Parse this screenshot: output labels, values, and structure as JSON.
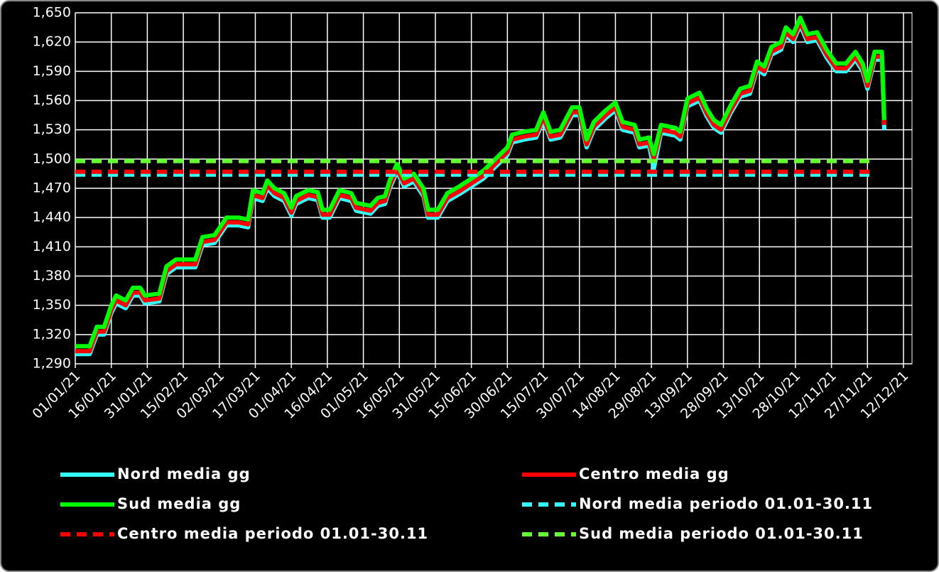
{
  "chart_data": {
    "type": "line",
    "xlim": [
      "2021-01-01",
      "2021-12-12"
    ],
    "xticks": [
      {
        "value": "2021-01-01",
        "label": "01/01/21"
      },
      {
        "value": "2021-01-16",
        "label": "16/01/21"
      },
      {
        "value": "2021-01-31",
        "label": "31/01/21"
      },
      {
        "value": "2021-02-15",
        "label": "15/02/21"
      },
      {
        "value": "2021-03-02",
        "label": "02/03/21"
      },
      {
        "value": "2021-03-17",
        "label": "17/03/21"
      },
      {
        "value": "2021-04-01",
        "label": "01/04/21"
      },
      {
        "value": "2021-04-16",
        "label": "16/04/21"
      },
      {
        "value": "2021-05-01",
        "label": "01/05/21"
      },
      {
        "value": "2021-05-16",
        "label": "16/05/21"
      },
      {
        "value": "2021-05-31",
        "label": "31/05/21"
      },
      {
        "value": "2021-06-15",
        "label": "15/06/21"
      },
      {
        "value": "2021-06-30",
        "label": "30/06/21"
      },
      {
        "value": "2021-07-15",
        "label": "15/07/21"
      },
      {
        "value": "2021-07-30",
        "label": "30/07/21"
      },
      {
        "value": "2021-08-14",
        "label": "14/08/21"
      },
      {
        "value": "2021-08-29",
        "label": "29/08/21"
      },
      {
        "value": "2021-09-13",
        "label": "13/09/21"
      },
      {
        "value": "2021-09-28",
        "label": "28/09/21"
      },
      {
        "value": "2021-10-13",
        "label": "13/10/21"
      },
      {
        "value": "2021-10-28",
        "label": "28/10/21"
      },
      {
        "value": "2021-11-12",
        "label": "12/11/21"
      },
      {
        "value": "2021-11-27",
        "label": "27/11/21"
      },
      {
        "value": "2021-12-12",
        "label": "12/12/21"
      }
    ],
    "ylim": [
      1290,
      1650
    ],
    "yticks": [
      {
        "value": 1290,
        "label": "1,290"
      },
      {
        "value": 1320,
        "label": "1,320"
      },
      {
        "value": 1350,
        "label": "1,350"
      },
      {
        "value": 1380,
        "label": "1,380"
      },
      {
        "value": 1410,
        "label": "1,410"
      },
      {
        "value": 1440,
        "label": "1,440"
      },
      {
        "value": 1470,
        "label": "1,470"
      },
      {
        "value": 1500,
        "label": "1,500"
      },
      {
        "value": 1530,
        "label": "1,530"
      },
      {
        "value": 1560,
        "label": "1,560"
      },
      {
        "value": 1590,
        "label": "1,590"
      },
      {
        "value": 1620,
        "label": "1,620"
      },
      {
        "value": 1650,
        "label": "1,650"
      }
    ],
    "grid": true,
    "x": [
      "2021-01-01",
      "2021-01-07",
      "2021-01-08",
      "2021-01-10",
      "2021-01-13",
      "2021-01-16",
      "2021-01-18",
      "2021-01-22",
      "2021-01-25",
      "2021-01-28",
      "2021-01-30",
      "2021-02-05",
      "2021-02-08",
      "2021-02-12",
      "2021-02-20",
      "2021-02-23",
      "2021-02-28",
      "2021-03-05",
      "2021-03-10",
      "2021-03-14",
      "2021-03-16",
      "2021-03-20",
      "2021-03-22",
      "2021-03-25",
      "2021-03-29",
      "2021-04-01",
      "2021-04-03",
      "2021-04-08",
      "2021-04-12",
      "2021-04-14",
      "2021-04-17",
      "2021-04-21",
      "2021-04-26",
      "2021-04-28",
      "2021-05-04",
      "2021-05-07",
      "2021-05-10",
      "2021-05-12",
      "2021-05-15",
      "2021-05-18",
      "2021-05-22",
      "2021-05-26",
      "2021-05-28",
      "2021-06-01",
      "2021-06-05",
      "2021-06-10",
      "2021-06-15",
      "2021-06-20",
      "2021-06-25",
      "2021-06-30",
      "2021-07-02",
      "2021-07-07",
      "2021-07-12",
      "2021-07-15",
      "2021-07-18",
      "2021-07-22",
      "2021-07-27",
      "2021-07-30",
      "2021-08-02",
      "2021-08-05",
      "2021-08-10",
      "2021-08-14",
      "2021-08-17",
      "2021-08-22",
      "2021-08-24",
      "2021-08-28",
      "2021-08-30",
      "2021-09-02",
      "2021-09-08",
      "2021-09-10",
      "2021-09-13",
      "2021-09-18",
      "2021-09-21",
      "2021-09-24",
      "2021-09-27",
      "2021-10-01",
      "2021-10-05",
      "2021-10-09",
      "2021-10-12",
      "2021-10-15",
      "2021-10-18",
      "2021-10-22",
      "2021-10-24",
      "2021-10-27",
      "2021-10-30",
      "2021-11-02",
      "2021-11-06",
      "2021-11-10",
      "2021-11-14",
      "2021-11-18",
      "2021-11-22",
      "2021-11-25",
      "2021-11-27",
      "2021-11-30",
      "2021-12-03",
      "2021-12-04"
    ],
    "series": [
      {
        "name": "Nord media gg",
        "color": "#33ffff",
        "style": "solid",
        "values": [
          1300,
          1300,
          1307,
          1320,
          1320,
          1342,
          1352,
          1347,
          1360,
          1360,
          1352,
          1354,
          1382,
          1389,
          1389,
          1412,
          1414,
          1432,
          1432,
          1430,
          1460,
          1457,
          1470,
          1462,
          1457,
          1442,
          1454,
          1460,
          1458,
          1440,
          1440,
          1460,
          1457,
          1447,
          1444,
          1452,
          1454,
          1470,
          1487,
          1472,
          1477,
          1462,
          1440,
          1440,
          1457,
          1464,
          1472,
          1480,
          1492,
          1504,
          1517,
          1520,
          1522,
          1540,
          1520,
          1522,
          1545,
          1545,
          1512,
          1530,
          1542,
          1550,
          1530,
          1527,
          1512,
          1514,
          1490,
          1527,
          1524,
          1520,
          1554,
          1560,
          1544,
          1532,
          1527,
          1547,
          1564,
          1567,
          1592,
          1587,
          1607,
          1612,
          1627,
          1620,
          1637,
          1620,
          1622,
          1604,
          1590,
          1590,
          1602,
          1590,
          1572,
          1602,
          1602,
          1530
        ]
      },
      {
        "name": "Centro media gg",
        "color": "#ff0000",
        "style": "solid",
        "values": [
          1303,
          1303,
          1310,
          1323,
          1323,
          1345,
          1355,
          1350,
          1363,
          1363,
          1355,
          1357,
          1385,
          1392,
          1392,
          1415,
          1417,
          1435,
          1435,
          1433,
          1463,
          1460,
          1473,
          1465,
          1460,
          1445,
          1457,
          1463,
          1461,
          1443,
          1443,
          1463,
          1460,
          1450,
          1447,
          1455,
          1457,
          1473,
          1490,
          1475,
          1480,
          1465,
          1443,
          1443,
          1460,
          1467,
          1475,
          1483,
          1495,
          1507,
          1520,
          1523,
          1525,
          1543,
          1523,
          1525,
          1548,
          1548,
          1515,
          1533,
          1545,
          1553,
          1533,
          1530,
          1515,
          1517,
          1500,
          1530,
          1527,
          1523,
          1557,
          1563,
          1547,
          1535,
          1530,
          1550,
          1567,
          1570,
          1595,
          1590,
          1610,
          1615,
          1630,
          1623,
          1640,
          1623,
          1625,
          1607,
          1593,
          1593,
          1605,
          1593,
          1575,
          1605,
          1605,
          1535
        ]
      },
      {
        "name": "Sud media gg",
        "color": "#00ff00",
        "style": "solid",
        "values": [
          1308,
          1308,
          1315,
          1328,
          1328,
          1350,
          1360,
          1355,
          1368,
          1368,
          1360,
          1362,
          1390,
          1397,
          1397,
          1420,
          1422,
          1440,
          1440,
          1438,
          1468,
          1465,
          1478,
          1470,
          1465,
          1450,
          1462,
          1468,
          1466,
          1448,
          1448,
          1468,
          1465,
          1455,
          1452,
          1460,
          1462,
          1478,
          1495,
          1480,
          1485,
          1470,
          1448,
          1448,
          1465,
          1472,
          1480,
          1488,
          1500,
          1512,
          1525,
          1528,
          1530,
          1548,
          1528,
          1530,
          1553,
          1553,
          1520,
          1538,
          1550,
          1558,
          1538,
          1535,
          1520,
          1522,
          1505,
          1535,
          1532,
          1528,
          1562,
          1568,
          1552,
          1540,
          1535,
          1555,
          1572,
          1575,
          1600,
          1595,
          1615,
          1620,
          1635,
          1628,
          1645,
          1628,
          1630,
          1612,
          1598,
          1598,
          1610,
          1598,
          1580,
          1610,
          1610,
          1540
        ]
      },
      {
        "name": "Nord media periodo 01.01-30.11",
        "color": "#33ffff",
        "style": "dashed",
        "x": [
          "2021-01-01",
          "2021-11-30"
        ],
        "values": [
          1484,
          1484
        ]
      },
      {
        "name": "Centro media periodo 01.01-30.11",
        "color": "#ff0000",
        "style": "dashed",
        "x": [
          "2021-01-01",
          "2021-11-30"
        ],
        "values": [
          1487,
          1487
        ]
      },
      {
        "name": "Sud media periodo 01.01-30.11",
        "color": "#66ff33",
        "style": "dashed",
        "x": [
          "2021-01-01",
          "2021-11-30"
        ],
        "values": [
          1498,
          1498
        ]
      }
    ]
  }
}
